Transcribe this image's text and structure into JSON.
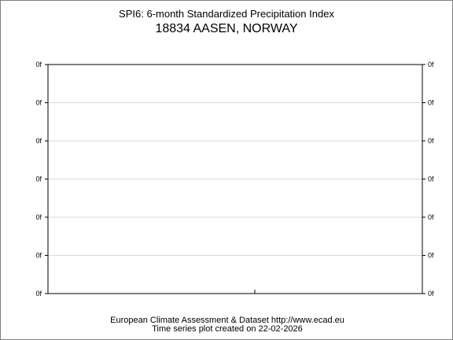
{
  "chart_data": {
    "type": "line",
    "title": "SPI6: 6-month Standardized Precipitation Index",
    "subtitle": "18834 AASEN, NORWAY",
    "y_tick_labels": [
      "0f",
      "0f",
      "0f",
      "0f",
      "0f",
      "0f",
      "0f"
    ],
    "series": [],
    "grid": true,
    "axes": {
      "x": "bottom",
      "y": "left-and-right"
    }
  },
  "footer": {
    "line1": "European Climate Assessment & Dataset  http://www.ecad.eu",
    "line2": "Time series plot created on 22-02-2026"
  },
  "colors": {
    "axis": "#000000",
    "grid": "#d9d9d9",
    "frame": "#7f7f7f"
  }
}
